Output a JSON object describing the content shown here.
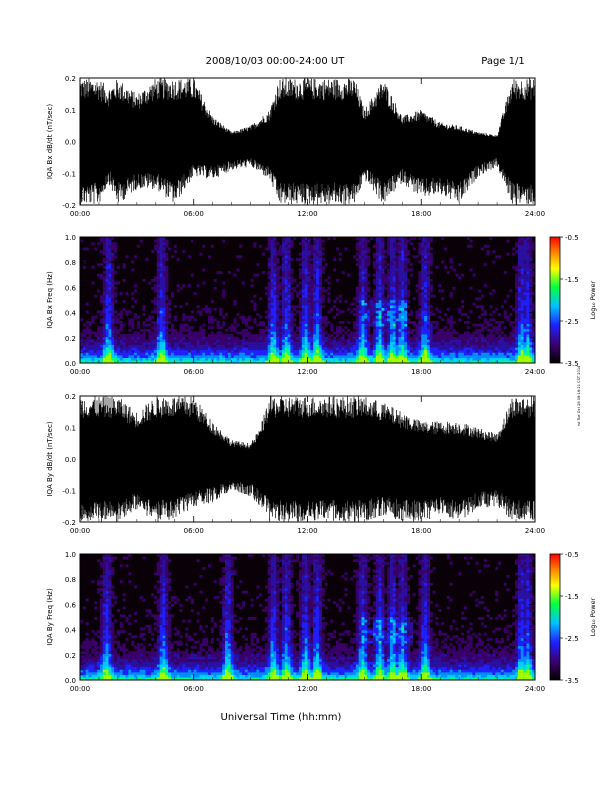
{
  "header": {
    "date_range": "2008/10/03  00:00-24:00 UT",
    "page": "Page 1/1"
  },
  "footer": {
    "xlabel": "Universal Time (hh:mm)"
  },
  "side_note": "rst Tue Oct 28 08:16:21 CST 2014",
  "colors": {
    "trace": "#000000",
    "spectrogram_background": "#0a0008",
    "colorbar": [
      "#000000",
      "#3a006a",
      "#2020ff",
      "#00c0ff",
      "#00ff40",
      "#ffff00",
      "#ff8000",
      "#ff0000"
    ]
  },
  "chart_data": [
    {
      "type": "line",
      "id": "bx-dbdt",
      "ylabel": "IQA Bx dB/dt (nT/sec)",
      "ylim": [
        -0.2,
        0.2
      ],
      "yticks": [
        "-0.2",
        "-0.1",
        "0.0",
        "0.1",
        "0.2"
      ],
      "xticks": [
        "00:00",
        "06:00",
        "12:00",
        "18:00",
        "24:00"
      ],
      "xlim_hours": [
        0,
        24
      ],
      "envelope": {
        "hours": [
          0,
          0.5,
          1,
          1.5,
          2,
          3,
          4,
          5,
          6,
          7,
          8,
          9,
          10,
          10.5,
          11,
          12,
          13,
          14,
          14.5,
          15,
          16,
          17,
          18,
          19,
          20,
          21,
          22,
          22.8,
          23,
          23.5,
          24
        ],
        "upper": [
          0.2,
          0.2,
          0.2,
          0.17,
          0.2,
          0.15,
          0.2,
          0.2,
          0.2,
          0.08,
          0.03,
          0.05,
          0.1,
          0.2,
          0.2,
          0.2,
          0.2,
          0.2,
          0.2,
          0.1,
          0.2,
          0.08,
          0.1,
          0.06,
          0.05,
          0.03,
          0.02,
          0.2,
          0.2,
          0.2,
          0.2
        ],
        "lower": [
          -0.2,
          -0.2,
          -0.2,
          -0.13,
          -0.2,
          -0.15,
          -0.15,
          -0.2,
          -0.11,
          -0.12,
          -0.09,
          -0.08,
          -0.12,
          -0.2,
          -0.2,
          -0.2,
          -0.2,
          -0.2,
          -0.2,
          -0.12,
          -0.2,
          -0.13,
          -0.18,
          -0.17,
          -0.2,
          -0.11,
          -0.08,
          -0.2,
          -0.2,
          -0.2,
          -0.2
        ]
      }
    },
    {
      "type": "heatmap",
      "id": "bx-spec",
      "ylabel": "IQA Bx Freq (Hz)",
      "ylim": [
        0,
        1.0
      ],
      "yticks": [
        "0.0",
        "0.2",
        "0.4",
        "0.6",
        "0.8",
        "1.0"
      ],
      "xticks": [
        "00:00",
        "06:00",
        "12:00",
        "18:00",
        "24:00"
      ],
      "xlim_hours": [
        0,
        24
      ],
      "colorbar": {
        "label": "Log₁₀ Power",
        "range": [
          -3.5,
          -0.5
        ],
        "ticks": [
          "-0.5",
          "-1.5",
          "-2.5",
          "-3.5"
        ]
      },
      "activity_hours": [
        1.5,
        4.3,
        10.2,
        10.9,
        11.9,
        12.5,
        14.9,
        15.8,
        16.5,
        17.0,
        18.2,
        23.3,
        23.6
      ],
      "band_feature": {
        "hours": [
          14.8,
          17.2
        ],
        "freq_hz": [
          0.3,
          0.5
        ]
      }
    },
    {
      "type": "line",
      "id": "by-dbdt",
      "ylabel": "IQA By dB/dt (nT/sec)",
      "ylim": [
        -0.2,
        0.2
      ],
      "yticks": [
        "-0.2",
        "-0.1",
        "0.0",
        "0.1",
        "0.2"
      ],
      "xticks": [
        "00:00",
        "06:00",
        "12:00",
        "18:00",
        "24:00"
      ],
      "xlim_hours": [
        0,
        24
      ],
      "envelope": {
        "hours": [
          0,
          0.5,
          1,
          2,
          3,
          4,
          5,
          6,
          7,
          8,
          9,
          9.5,
          10,
          11,
          12,
          13,
          14,
          15,
          16,
          17,
          18,
          19,
          20,
          21,
          22,
          22.8,
          23,
          24
        ],
        "upper": [
          0.2,
          0.2,
          0.2,
          0.2,
          0.15,
          0.2,
          0.2,
          0.2,
          0.12,
          0.06,
          0.05,
          0.1,
          0.2,
          0.2,
          0.2,
          0.2,
          0.2,
          0.2,
          0.18,
          0.15,
          0.12,
          0.12,
          0.12,
          0.1,
          0.08,
          0.2,
          0.2,
          0.2
        ],
        "lower": [
          -0.2,
          -0.2,
          -0.2,
          -0.2,
          -0.16,
          -0.2,
          -0.2,
          -0.15,
          -0.14,
          -0.1,
          -0.12,
          -0.15,
          -0.2,
          -0.2,
          -0.2,
          -0.2,
          -0.2,
          -0.2,
          -0.18,
          -0.2,
          -0.2,
          -0.18,
          -0.2,
          -0.16,
          -0.15,
          -0.2,
          -0.2,
          -0.2
        ]
      }
    },
    {
      "type": "heatmap",
      "id": "by-spec",
      "ylabel": "IQA By Freq (Hz)",
      "ylim": [
        0,
        1.0
      ],
      "yticks": [
        "0.0",
        "0.2",
        "0.4",
        "0.6",
        "0.8",
        "1.0"
      ],
      "xticks": [
        "00:00",
        "06:00",
        "12:00",
        "18:00",
        "24:00"
      ],
      "xlim_hours": [
        0,
        24
      ],
      "colorbar": {
        "label": "Log₁₀ Power",
        "range": [
          -3.5,
          -0.5
        ],
        "ticks": [
          "-0.5",
          "-1.5",
          "-2.5",
          "-3.5"
        ]
      },
      "activity_hours": [
        1.4,
        4.4,
        7.8,
        10.2,
        10.9,
        11.9,
        12.5,
        14.9,
        15.8,
        16.5,
        17.0,
        18.2,
        23.3,
        23.6
      ],
      "band_feature": {
        "hours": [
          14.8,
          17.5
        ],
        "freq_hz": [
          0.3,
          0.5
        ]
      }
    }
  ]
}
